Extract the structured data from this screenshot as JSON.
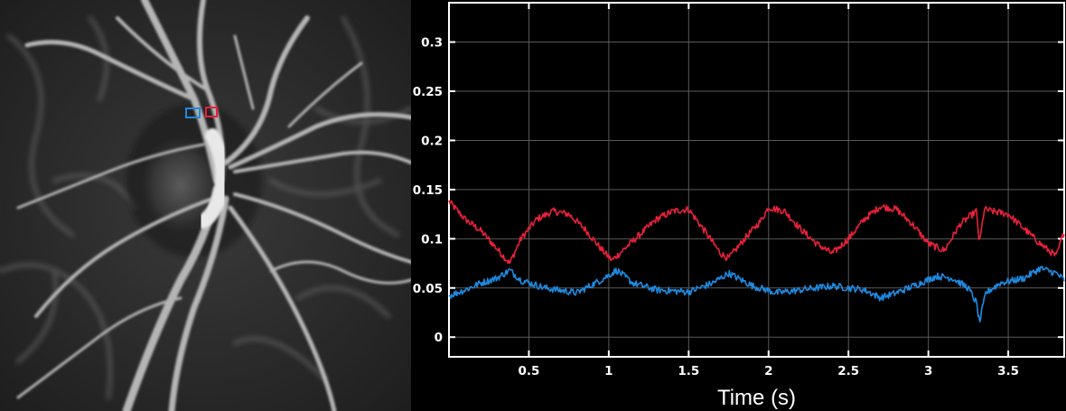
{
  "chart_data": {
    "type": "line",
    "title": "",
    "xlabel": "Time (s)",
    "ylabel": "",
    "xlim": [
      0,
      3.85
    ],
    "ylim": [
      -0.02,
      0.34
    ],
    "xticks": [
      0.5,
      1,
      1.5,
      2,
      2.5,
      3,
      3.5
    ],
    "xtick_labels": [
      "0.5",
      "1",
      "1.5",
      "2",
      "2.5",
      "3",
      "3.5"
    ],
    "yticks": [
      0,
      0.05,
      0.1,
      0.15,
      0.2,
      0.25,
      0.3
    ],
    "ytick_labels": [
      "0",
      "0.05",
      "0.1",
      "0.15",
      "0.2",
      "0.25",
      "0.3"
    ],
    "grid": true,
    "background": "#000000",
    "series": [
      {
        "color": "#e8213a",
        "x": [
          0,
          0.1,
          0.2,
          0.3,
          0.38,
          0.45,
          0.55,
          0.65,
          0.75,
          0.85,
          0.95,
          1.02,
          1.1,
          1.2,
          1.3,
          1.4,
          1.5,
          1.6,
          1.7,
          1.75,
          1.85,
          1.95,
          2.0,
          2.1,
          2.2,
          2.3,
          2.4,
          2.5,
          2.6,
          2.7,
          2.8,
          2.9,
          3.0,
          3.1,
          3.2,
          3.3,
          3.32,
          3.35,
          3.4,
          3.5,
          3.6,
          3.7,
          3.8,
          3.85
        ],
        "y": [
          0.138,
          0.12,
          0.108,
          0.09,
          0.075,
          0.1,
          0.12,
          0.128,
          0.125,
          0.11,
          0.09,
          0.078,
          0.09,
          0.105,
          0.12,
          0.128,
          0.13,
          0.108,
          0.085,
          0.08,
          0.1,
          0.118,
          0.132,
          0.128,
          0.11,
          0.095,
          0.085,
          0.1,
          0.12,
          0.133,
          0.13,
          0.115,
          0.095,
          0.088,
          0.115,
          0.128,
          0.095,
          0.13,
          0.128,
          0.125,
          0.11,
          0.095,
          0.082,
          0.108
        ]
      },
      {
        "color": "#1e8ae0",
        "x": [
          0,
          0.1,
          0.2,
          0.3,
          0.38,
          0.45,
          0.6,
          0.8,
          0.95,
          1.05,
          1.15,
          1.3,
          1.5,
          1.65,
          1.75,
          1.9,
          2.05,
          2.2,
          2.4,
          2.6,
          2.7,
          2.8,
          2.95,
          3.05,
          3.15,
          3.25,
          3.3,
          3.32,
          3.36,
          3.45,
          3.6,
          3.7,
          3.8,
          3.85
        ],
        "y": [
          0.042,
          0.048,
          0.055,
          0.06,
          0.068,
          0.058,
          0.05,
          0.045,
          0.058,
          0.068,
          0.055,
          0.048,
          0.046,
          0.055,
          0.065,
          0.052,
          0.045,
          0.048,
          0.052,
          0.048,
          0.04,
          0.045,
          0.055,
          0.062,
          0.06,
          0.05,
          0.035,
          0.015,
          0.045,
          0.055,
          0.06,
          0.07,
          0.065,
          0.058
        ]
      }
    ]
  },
  "roi_markers": [
    {
      "color": "#1e8ae0"
    },
    {
      "color": "#e8213a"
    }
  ]
}
